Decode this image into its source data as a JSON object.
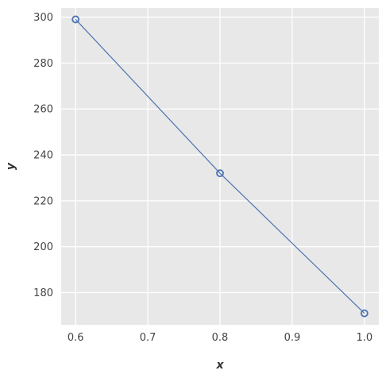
{
  "chart_data": {
    "type": "line",
    "title": "",
    "xlabel": "x",
    "ylabel": "y",
    "x": [
      0.6,
      0.8,
      1.0
    ],
    "series": [
      {
        "values": [
          299,
          232,
          171
        ]
      }
    ],
    "xlim": [
      0.58,
      1.02
    ],
    "ylim": [
      166,
      304
    ],
    "xticks": [
      0.6,
      0.7,
      0.8,
      0.9,
      1.0
    ],
    "xtick_labels": [
      "0.6",
      "0.7",
      "0.8",
      "0.9",
      "1.0"
    ],
    "yticks": [
      180,
      200,
      220,
      240,
      260,
      280,
      300
    ],
    "ytick_labels": [
      "180",
      "200",
      "220",
      "240",
      "260",
      "280",
      "300"
    ],
    "grid": true,
    "marker": "open-circle",
    "colors": {
      "line": "#4c72b0",
      "background": "#e8e8e8",
      "grid": "#ffffff"
    }
  }
}
